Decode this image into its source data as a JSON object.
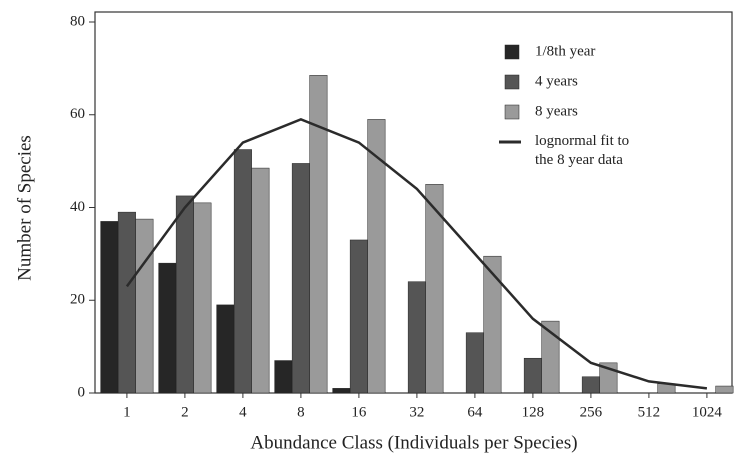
{
  "chart_data": {
    "type": "bar",
    "xlabel": "Abundance Class (Individuals per Species)",
    "ylabel": "Number of Species",
    "categories": [
      "1",
      "2",
      "4",
      "8",
      "16",
      "32",
      "64",
      "128",
      "256",
      "512",
      "1024"
    ],
    "series": [
      {
        "name": "1/8th year",
        "color": "#262626",
        "values": [
          37,
          28,
          19,
          7,
          1,
          0,
          0,
          0,
          0,
          0,
          0
        ]
      },
      {
        "name": "4 years",
        "color": "#555555",
        "values": [
          39,
          42.5,
          52.5,
          49.5,
          33,
          24,
          13,
          7.5,
          3.5,
          0,
          0
        ]
      },
      {
        "name": "8 years",
        "color": "#9a9a9a",
        "values": [
          37.5,
          41,
          48.5,
          68.5,
          59,
          45,
          29.5,
          15.5,
          6.5,
          2,
          1.5
        ]
      },
      {
        "name": "lognormal fit to the 8 year data",
        "type": "line",
        "color": "#2b2b2b",
        "values": [
          23,
          40,
          54,
          59,
          54,
          44,
          30,
          16,
          6.5,
          2.5,
          1
        ]
      }
    ],
    "ylim": [
      0,
      80
    ],
    "yticks": [
      0,
      20,
      40,
      60,
      80
    ],
    "legend": "upper right"
  }
}
